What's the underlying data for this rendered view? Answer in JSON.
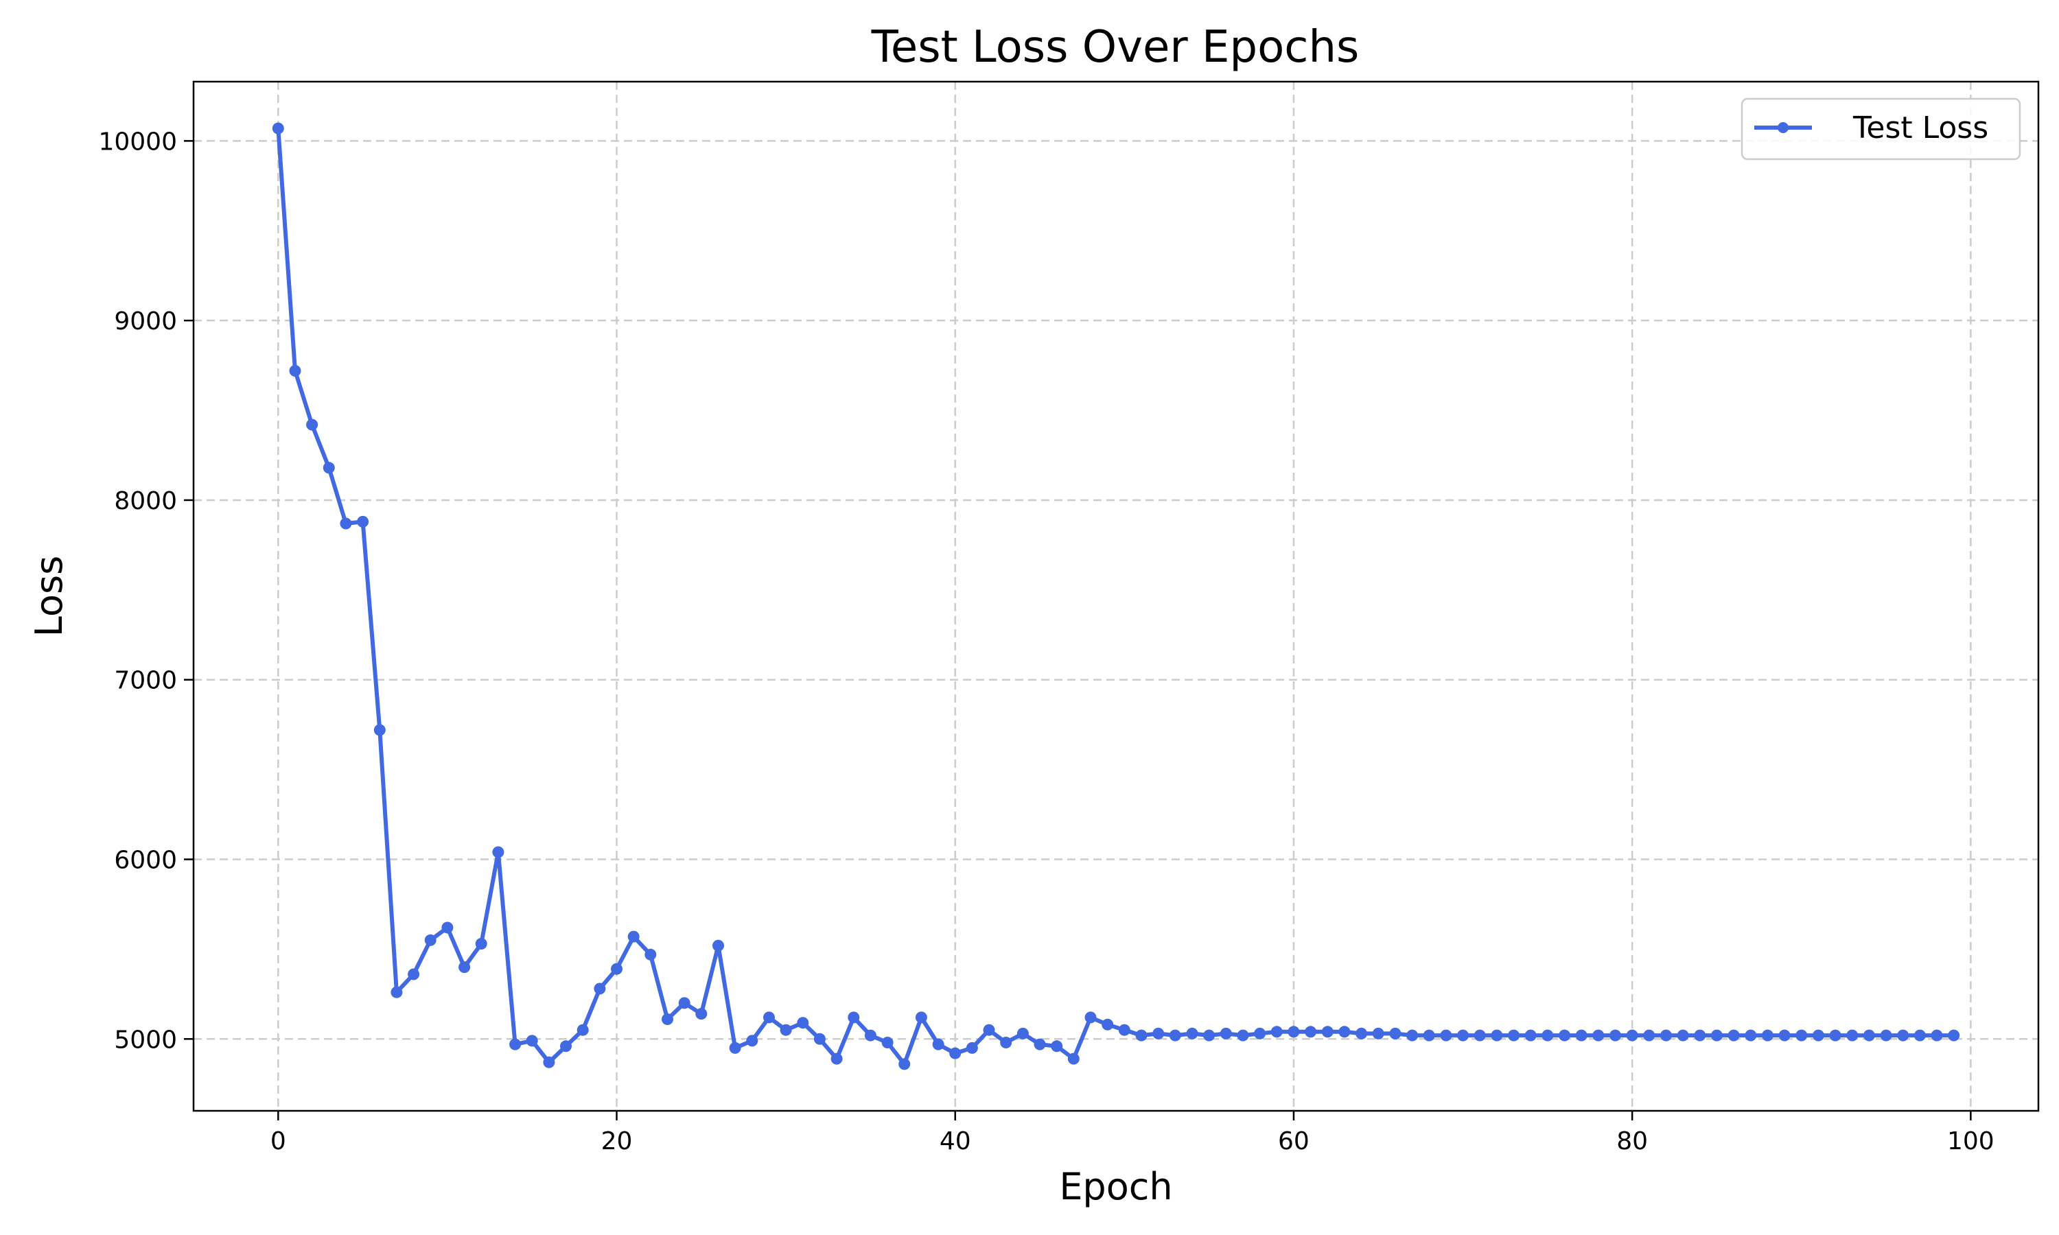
{
  "chart_data": {
    "type": "line",
    "title": "Test Loss Over Epochs",
    "xlabel": "Epoch",
    "ylabel": "Loss",
    "xlim": [
      -5,
      104
    ],
    "ylim": [
      4600,
      10330
    ],
    "xticks": [
      0,
      20,
      40,
      60,
      80,
      100
    ],
    "yticks": [
      5000,
      6000,
      7000,
      8000,
      9000,
      10000
    ],
    "grid": true,
    "legend_position": "top-right",
    "series": [
      {
        "name": "Test Loss",
        "color": "#4169e1",
        "marker": "circle",
        "x": [
          0,
          1,
          2,
          3,
          4,
          5,
          6,
          7,
          8,
          9,
          10,
          11,
          12,
          13,
          14,
          15,
          16,
          17,
          18,
          19,
          20,
          21,
          22,
          23,
          24,
          25,
          26,
          27,
          28,
          29,
          30,
          31,
          32,
          33,
          34,
          35,
          36,
          37,
          38,
          39,
          40,
          41,
          42,
          43,
          44,
          45,
          46,
          47,
          48,
          49,
          50,
          51,
          52,
          53,
          54,
          55,
          56,
          57,
          58,
          59,
          60,
          61,
          62,
          63,
          64,
          65,
          66,
          67,
          68,
          69,
          70,
          71,
          72,
          73,
          74,
          75,
          76,
          77,
          78,
          79,
          80,
          81,
          82,
          83,
          84,
          85,
          86,
          87,
          88,
          89,
          90,
          91,
          92,
          93,
          94,
          95,
          96,
          97,
          98,
          99
        ],
        "y": [
          10070,
          8720,
          8420,
          8180,
          7870,
          7880,
          6720,
          5260,
          5360,
          5550,
          5620,
          5400,
          5530,
          6040,
          4970,
          4990,
          4870,
          4960,
          5050,
          5280,
          5390,
          5570,
          5470,
          5110,
          5200,
          5140,
          5520,
          4950,
          4990,
          5120,
          5050,
          5090,
          5000,
          4890,
          5120,
          5020,
          4980,
          4860,
          5120,
          4970,
          4920,
          4950,
          5050,
          4980,
          5030,
          4970,
          4960,
          4890,
          5120,
          5080,
          5050,
          5020,
          5030,
          5020,
          5030,
          5020,
          5030,
          5020,
          5030,
          5040,
          5040,
          5040,
          5040,
          5040,
          5030,
          5030,
          5030,
          5020,
          5020,
          5020,
          5020,
          5020,
          5020,
          5020,
          5020,
          5020,
          5020,
          5020,
          5020,
          5020,
          5020,
          5020,
          5020,
          5020,
          5020,
          5020,
          5020,
          5020,
          5020,
          5020,
          5020,
          5020,
          5020,
          5020,
          5020,
          5020,
          5020,
          5020,
          5020,
          5020
        ]
      }
    ]
  }
}
